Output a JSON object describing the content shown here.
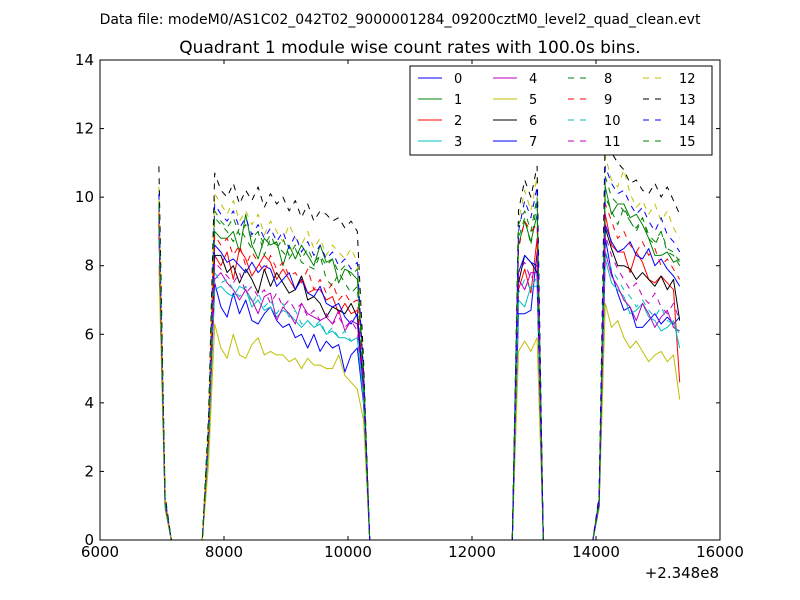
{
  "suptitle": "Data file: modeM0/AS1C02_042T02_9000001284_09200cztM0_level2_quad_clean.evt",
  "chart_data": {
    "type": "line",
    "title": "Quadrant 1 module wise count rates with 100.0s bins.",
    "xlabel": "",
    "ylabel": "",
    "x_offset_label": "+2.348e8",
    "xlim": [
      6000,
      16000
    ],
    "ylim": [
      0,
      14
    ],
    "xticks": [
      6000,
      8000,
      10000,
      12000,
      14000,
      16000
    ],
    "yticks": [
      0,
      2,
      4,
      6,
      8,
      10,
      12,
      14
    ],
    "grid": false,
    "legend": {
      "placement": "top-right",
      "ncol": 4
    },
    "x": [
      6950,
      7050,
      7150,
      7650,
      7750,
      7850,
      7950,
      8050,
      8150,
      8250,
      8350,
      8450,
      8550,
      8650,
      8750,
      8850,
      8950,
      9050,
      9150,
      9250,
      9350,
      9450,
      9550,
      9650,
      9750,
      9850,
      9950,
      10050,
      10150,
      10250,
      10350,
      10450,
      12550,
      12650,
      12750,
      12850,
      12950,
      13050,
      13150,
      13250,
      13950,
      14050,
      14150,
      14250,
      14350,
      14450,
      14550,
      14650,
      14750,
      14850,
      14950,
      15050,
      15150,
      15250,
      15350
    ],
    "series": [
      {
        "name": "0",
        "color": "#0000ff",
        "dash": "solid",
        "values": [
          9.2,
          1.0,
          0,
          0,
          2.8,
          7.5,
          6.8,
          6.5,
          7.2,
          6.6,
          7.0,
          6.4,
          6.3,
          6.6,
          6.8,
          6.4,
          6.2,
          6.3,
          5.9,
          6.0,
          5.6,
          6.0,
          5.5,
          5.8,
          5.6,
          5.7,
          4.9,
          5.4,
          5.6,
          4.0,
          0,
          0,
          0,
          0,
          6.6,
          6.6,
          6.7,
          8.4,
          0,
          0,
          0,
          1.0,
          8.8,
          7.8,
          7.2,
          6.7,
          6.8,
          6.2,
          6.2,
          6.4,
          6.6,
          6.3,
          6.5,
          6.3,
          6.5
        ]
      },
      {
        "name": "1",
        "color": "#008000",
        "dash": "solid",
        "values": [
          9.7,
          1.2,
          0,
          0,
          3.2,
          9.0,
          8.8,
          8.8,
          9.0,
          8.4,
          9.5,
          8.6,
          8.2,
          8.8,
          8.6,
          8.7,
          8.0,
          8.6,
          8.2,
          8.6,
          8.3,
          8.0,
          8.6,
          8.1,
          8.2,
          7.5,
          7.9,
          7.8,
          7.6,
          5.0,
          0,
          0,
          0,
          0,
          8.6,
          9.3,
          8.7,
          9.5,
          0,
          0,
          0,
          1.2,
          10.3,
          9.5,
          9.8,
          9.8,
          9.4,
          9.5,
          9.2,
          8.8,
          8.3,
          8.3,
          8.4,
          8.1,
          8.2
        ]
      },
      {
        "name": "2",
        "color": "#ff0000",
        "dash": "solid",
        "values": [
          9.4,
          1.1,
          0,
          0,
          3.0,
          8.3,
          8.0,
          8.4,
          7.6,
          8.5,
          8.2,
          7.7,
          8.0,
          8.3,
          8.1,
          7.6,
          7.9,
          7.6,
          7.3,
          7.7,
          7.2,
          7.3,
          7.3,
          7.0,
          7.1,
          6.6,
          6.9,
          6.6,
          6.7,
          4.4,
          0,
          0,
          0,
          0,
          7.3,
          7.9,
          7.2,
          8.8,
          0,
          0,
          0,
          1.1,
          9.5,
          8.6,
          8.4,
          8.4,
          7.8,
          8.4,
          8.1,
          7.6,
          7.5,
          7.7,
          7.5,
          7.3,
          4.6
        ]
      },
      {
        "name": "3",
        "color": "#00bfbf",
        "dash": "solid",
        "values": [
          9.0,
          1.0,
          0,
          0,
          2.7,
          7.3,
          7.4,
          7.2,
          7.1,
          7.4,
          7.3,
          6.8,
          7.0,
          6.7,
          6.8,
          6.5,
          6.7,
          6.6,
          6.4,
          6.2,
          6.4,
          6.2,
          6.3,
          6.0,
          6.1,
          5.9,
          5.9,
          5.8,
          5.9,
          4.1,
          0,
          0,
          0,
          0,
          7.0,
          6.8,
          7.4,
          7.4,
          0,
          0,
          0,
          1.0,
          8.2,
          7.5,
          7.3,
          7.1,
          6.6,
          6.7,
          6.9,
          6.5,
          6.4,
          6.1,
          6.2,
          6.4,
          5.6
        ]
      },
      {
        "name": "4",
        "color": "#bf00bf",
        "dash": "solid",
        "values": [
          9.5,
          1.1,
          0,
          0,
          3.0,
          7.6,
          7.8,
          7.5,
          7.3,
          7.0,
          7.3,
          7.0,
          6.6,
          7.1,
          7.2,
          6.4,
          6.8,
          6.6,
          6.3,
          6.9,
          6.6,
          6.5,
          6.4,
          6.5,
          6.3,
          6.7,
          6.1,
          6.4,
          6.3,
          4.5,
          0,
          0,
          0,
          0,
          7.6,
          7.3,
          7.8,
          7.8,
          0,
          0,
          0,
          1.1,
          8.4,
          7.7,
          7.4,
          7.0,
          6.8,
          6.4,
          6.9,
          6.6,
          6.2,
          6.5,
          6.7,
          6.2,
          6.1
        ]
      },
      {
        "name": "5",
        "color": "#bfbf00",
        "dash": "solid",
        "values": [
          8.0,
          0.9,
          0,
          0,
          2.2,
          6.3,
          5.6,
          5.3,
          6.0,
          5.4,
          5.3,
          5.7,
          5.9,
          5.4,
          5.5,
          5.4,
          5.4,
          5.2,
          5.3,
          5.0,
          5.3,
          5.1,
          5.1,
          5.0,
          5.0,
          5.4,
          4.8,
          4.6,
          4.4,
          3.5,
          0,
          0,
          0,
          0,
          5.5,
          5.8,
          5.5,
          5.9,
          0,
          0,
          0,
          0.9,
          6.9,
          6.2,
          6.4,
          5.9,
          5.6,
          5.8,
          5.5,
          5.2,
          5.4,
          5.5,
          5.2,
          5.4,
          4.1
        ]
      },
      {
        "name": "6",
        "color": "#000000",
        "dash": "solid",
        "values": [
          9.3,
          1.1,
          0,
          0,
          3.0,
          8.3,
          8.3,
          7.8,
          8.0,
          7.5,
          7.9,
          7.6,
          7.2,
          7.9,
          7.4,
          7.8,
          7.5,
          7.2,
          7.3,
          7.7,
          7.0,
          7.1,
          6.9,
          6.5,
          6.8,
          6.7,
          6.6,
          6.9,
          6.5,
          4.4,
          0,
          0,
          0,
          0,
          7.5,
          8.3,
          8.1,
          7.8,
          0,
          0,
          0,
          1.1,
          9.1,
          8.5,
          8.0,
          8.0,
          7.9,
          7.6,
          7.8,
          7.6,
          7.4,
          7.7,
          7.3,
          7.6,
          6.4
        ]
      },
      {
        "name": "7",
        "color": "#0000ff",
        "dash": "solid",
        "values": [
          9.1,
          1.0,
          0,
          0,
          3.1,
          8.6,
          8.4,
          8.1,
          8.2,
          8.0,
          7.8,
          8.1,
          7.8,
          8.0,
          7.9,
          7.4,
          7.6,
          7.8,
          7.3,
          7.6,
          7.2,
          7.1,
          7.4,
          6.9,
          6.8,
          6.9,
          6.5,
          6.3,
          6.6,
          4.5,
          0,
          0,
          0,
          0,
          7.8,
          8.3,
          8.1,
          8.0,
          0,
          0,
          0,
          1.0,
          9.2,
          8.7,
          8.4,
          8.5,
          8.7,
          8.3,
          8.2,
          8.5,
          8.0,
          8.2,
          7.9,
          7.7,
          7.4
        ]
      },
      {
        "name": "8",
        "color": "#008000",
        "dash": "dash",
        "values": [
          9.9,
          1.2,
          0,
          0,
          3.3,
          9.4,
          9.2,
          9.0,
          8.7,
          9.1,
          8.8,
          8.5,
          9.0,
          8.3,
          8.8,
          8.6,
          8.4,
          8.2,
          8.5,
          8.1,
          8.0,
          7.9,
          8.3,
          7.6,
          7.4,
          7.8,
          7.5,
          7.2,
          7.4,
          4.7,
          0,
          0,
          0,
          0,
          8.8,
          9.4,
          8.6,
          9.9,
          0,
          0,
          0,
          1.2,
          10.0,
          9.6,
          9.2,
          9.7,
          9.3,
          9.0,
          9.4,
          8.8,
          8.6,
          9.0,
          8.4,
          8.3,
          8.0
        ]
      },
      {
        "name": "9",
        "color": "#ff0000",
        "dash": "dash",
        "values": [
          9.6,
          1.1,
          0,
          0,
          3.1,
          8.9,
          8.6,
          8.8,
          8.3,
          8.6,
          8.0,
          8.4,
          8.1,
          7.8,
          8.3,
          7.9,
          8.1,
          7.7,
          7.8,
          7.5,
          7.9,
          7.3,
          7.6,
          7.2,
          7.5,
          7.0,
          7.2,
          6.9,
          7.0,
          4.6,
          0,
          0,
          0,
          0,
          8.5,
          9.3,
          9.0,
          9.2,
          0,
          0,
          0,
          1.1,
          9.8,
          9.3,
          8.8,
          9.0,
          8.6,
          8.4,
          8.7,
          8.3,
          8.5,
          8.0,
          8.2,
          7.9,
          7.6
        ]
      },
      {
        "name": "10",
        "color": "#00bfbf",
        "dash": "dash",
        "values": [
          9.1,
          1.0,
          0,
          0,
          2.9,
          7.8,
          7.5,
          7.6,
          7.3,
          7.1,
          7.4,
          6.9,
          7.2,
          6.8,
          7.0,
          6.6,
          6.9,
          6.5,
          6.7,
          6.3,
          6.4,
          6.2,
          6.4,
          6.0,
          6.2,
          5.9,
          6.1,
          5.8,
          5.9,
          4.2,
          0,
          0,
          0,
          0,
          7.2,
          7.6,
          7.3,
          7.7,
          0,
          0,
          0,
          1.0,
          8.4,
          7.9,
          7.6,
          7.3,
          7.1,
          6.8,
          7.0,
          6.7,
          6.5,
          6.8,
          6.4,
          6.3,
          6.0
        ]
      },
      {
        "name": "11",
        "color": "#bf00bf",
        "dash": "dash",
        "values": [
          9.4,
          1.1,
          0,
          0,
          3.0,
          8.1,
          7.9,
          7.7,
          7.5,
          7.8,
          7.2,
          7.4,
          7.1,
          7.3,
          6.9,
          7.2,
          6.8,
          7.0,
          6.7,
          6.9,
          6.5,
          6.7,
          6.4,
          6.6,
          6.3,
          6.5,
          6.2,
          6.4,
          6.1,
          4.4,
          0,
          0,
          0,
          0,
          7.8,
          8.1,
          7.6,
          8.0,
          0,
          0,
          0,
          1.1,
          8.9,
          8.3,
          7.9,
          7.6,
          7.3,
          7.5,
          7.1,
          6.9,
          7.2,
          6.8,
          6.6,
          6.9,
          6.4
        ]
      },
      {
        "name": "12",
        "color": "#bfbf00",
        "dash": "dash",
        "values": [
          10.3,
          1.2,
          0,
          0,
          3.4,
          10.1,
          9.8,
          9.5,
          9.9,
          9.3,
          9.6,
          9.2,
          9.5,
          8.9,
          9.3,
          9.0,
          8.7,
          9.2,
          8.8,
          8.6,
          9.0,
          8.5,
          8.8,
          8.3,
          8.6,
          8.4,
          8.2,
          8.5,
          8.1,
          5.0,
          0,
          0,
          0,
          0,
          9.3,
          10.2,
          9.6,
          10.6,
          0,
          0,
          0,
          1.2,
          11.2,
          10.5,
          10.3,
          10.8,
          10.1,
          9.7,
          9.9,
          9.5,
          9.8,
          9.3,
          9.6,
          9.1,
          8.8
        ]
      },
      {
        "name": "13",
        "color": "#000000",
        "dash": "dash",
        "values": [
          10.9,
          1.3,
          0,
          0,
          3.6,
          10.7,
          10.2,
          10.0,
          10.4,
          9.8,
          10.2,
          9.9,
          10.3,
          9.7,
          10.1,
          9.8,
          10.0,
          9.6,
          9.9,
          9.4,
          9.8,
          9.3,
          9.6,
          9.5,
          9.3,
          9.4,
          9.1,
          9.3,
          9.0,
          5.3,
          0,
          0,
          0,
          0,
          9.6,
          10.5,
          10.0,
          10.9,
          0,
          0,
          0,
          1.3,
          12.0,
          11.3,
          11.0,
          10.8,
          10.4,
          10.5,
          10.2,
          10.1,
          10.4,
          10.0,
          10.3,
          9.9,
          9.5
        ]
      },
      {
        "name": "14",
        "color": "#0000ff",
        "dash": "dash",
        "values": [
          10.1,
          1.2,
          0,
          0,
          3.3,
          9.8,
          9.5,
          9.3,
          9.6,
          9.1,
          9.4,
          8.9,
          9.2,
          8.8,
          9.1,
          8.7,
          9.0,
          8.5,
          8.9,
          8.4,
          8.7,
          8.3,
          8.6,
          8.2,
          8.4,
          8.0,
          8.2,
          7.9,
          8.1,
          4.9,
          0,
          0,
          0,
          0,
          9.0,
          9.9,
          9.4,
          10.3,
          0,
          0,
          0,
          1.2,
          10.9,
          10.4,
          10.1,
          10.2,
          9.8,
          9.5,
          9.7,
          9.3,
          9.0,
          9.4,
          8.9,
          8.7,
          8.4
        ]
      },
      {
        "name": "15",
        "color": "#008000",
        "dash": "dash",
        "values": [
          9.8,
          1.1,
          0,
          0,
          3.2,
          9.6,
          9.3,
          9.1,
          9.4,
          8.9,
          9.2,
          8.8,
          9.0,
          8.6,
          8.9,
          8.5,
          8.8,
          8.3,
          8.6,
          8.2,
          8.5,
          8.1,
          8.3,
          8.0,
          8.2,
          7.8,
          8.0,
          7.7,
          7.9,
          4.8,
          0,
          0,
          0,
          0,
          9.2,
          9.6,
          9.0,
          10.0,
          0,
          0,
          0,
          1.1,
          10.6,
          10.0,
          9.8,
          9.6,
          9.3,
          9.1,
          9.4,
          8.9,
          8.7,
          9.0,
          8.5,
          8.4,
          8.1
        ]
      }
    ]
  }
}
